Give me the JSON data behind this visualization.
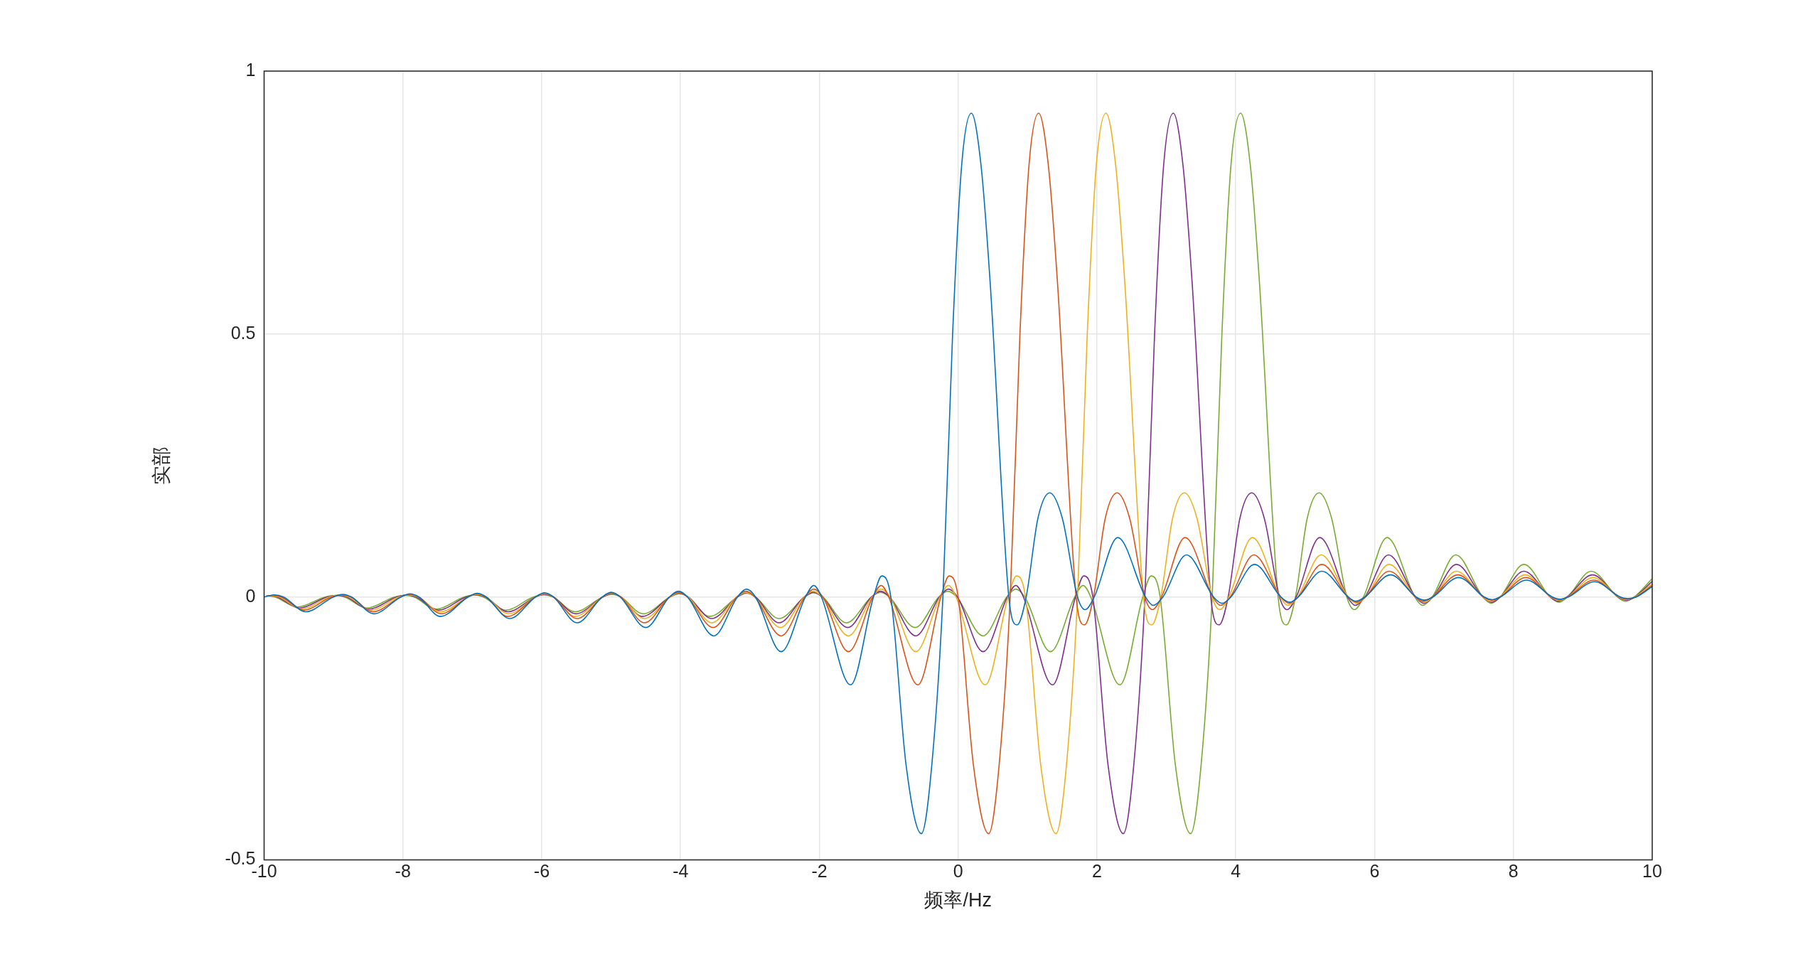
{
  "chart_data": {
    "type": "line",
    "xlabel": "频率/Hz",
    "ylabel": "实部",
    "xlim": [
      -10,
      10
    ],
    "xticks": [
      -10,
      -8,
      -6,
      -4,
      -2,
      0,
      2,
      4,
      6,
      8,
      10
    ],
    "ylim": [
      -0.5,
      1
    ],
    "yticks": [
      -0.5,
      0,
      0.5,
      1
    ],
    "grid": true,
    "legend": false,
    "series": [
      {
        "color": "#0072bd",
        "x": [
          -10.0,
          -9.85,
          -9.72,
          -9.4,
          -9.0,
          -8.87,
          -8.74,
          -8.42,
          -8.03,
          -7.9,
          -7.77,
          -7.46,
          -7.06,
          -6.93,
          -6.8,
          -6.46,
          -6.09,
          -5.96,
          -5.83,
          -5.49,
          -5.13,
          -5.0,
          -4.87,
          -4.5,
          -4.16,
          -4.03,
          -3.9,
          -3.52,
          -3.18,
          -3.05,
          -2.92,
          -2.55,
          -2.2,
          -2.08,
          -1.97,
          -1.55,
          -1.22,
          -1.1,
          -0.97,
          -0.75,
          -0.53,
          -0.38,
          -0.22,
          -0.08,
          0.05,
          0.19,
          0.33,
          0.46,
          0.73,
          0.85,
          0.98,
          1.15,
          1.32,
          1.5,
          1.72,
          1.83,
          1.96,
          2.3,
          2.7,
          2.81,
          2.95,
          3.29,
          3.68,
          3.8,
          3.93,
          4.27,
          4.65,
          4.78,
          4.9,
          5.24,
          5.62,
          5.73,
          5.86,
          6.23,
          6.6,
          6.72,
          6.84,
          7.21,
          7.58,
          7.69,
          7.81,
          8.19,
          8.56,
          8.67,
          8.79,
          9.17,
          9.54,
          9.65,
          9.77,
          10.0
        ],
        "values": [
          0,
          0.004,
          0,
          -0.028,
          0,
          0.005,
          0,
          -0.032,
          0,
          0.006,
          0,
          -0.037,
          0,
          0.007,
          0,
          -0.041,
          0,
          0.008,
          0,
          -0.049,
          0,
          0.009,
          0,
          -0.058,
          0,
          0.011,
          0,
          -0.074,
          0,
          0.015,
          0,
          -0.104,
          0,
          0.022,
          0,
          -0.167,
          0,
          0.04,
          0,
          -0.32,
          -0.45,
          -0.32,
          0,
          0.5,
          0.82,
          0.92,
          0.82,
          0.6,
          0,
          -0.053,
          0,
          0.15,
          0.198,
          0.15,
          0,
          -0.024,
          0,
          0.113,
          0,
          -0.016,
          0,
          0.08,
          0,
          -0.012,
          0,
          0.062,
          0,
          -0.01,
          0,
          0.049,
          0,
          -0.008,
          0,
          0.042,
          0,
          -0.006,
          0,
          0.037,
          0,
          -0.005,
          0,
          0.032,
          0,
          -0.004,
          0,
          0.029,
          0,
          -0.003,
          0,
          0.02
        ]
      },
      {
        "color": "#d95319",
        "x": [
          -9.88,
          -9.75,
          -9.43,
          -9.03,
          -8.88,
          -8.75,
          -8.43,
          -8.03,
          -7.9,
          -7.77,
          -7.45,
          -7.06,
          -6.93,
          -6.8,
          -6.49,
          -6.09,
          -5.96,
          -5.83,
          -5.49,
          -5.12,
          -4.99,
          -4.86,
          -4.52,
          -4.16,
          -4.03,
          -3.9,
          -3.53,
          -3.19,
          -3.06,
          -2.93,
          -2.55,
          -2.21,
          -2.08,
          -1.95,
          -1.58,
          -1.23,
          -1.11,
          -1.0,
          -0.58,
          -0.25,
          -0.13,
          0.0,
          0.22,
          0.44,
          0.59,
          0.75,
          0.89,
          1.02,
          1.16,
          1.3,
          1.43,
          1.7,
          1.82,
          1.95,
          2.12,
          2.29,
          2.47,
          2.69,
          2.8,
          2.93,
          3.27,
          3.67,
          3.78,
          3.92,
          4.26,
          4.65,
          4.77,
          4.9,
          5.24,
          5.62,
          5.75,
          5.87,
          6.21,
          6.59,
          6.7,
          6.83,
          7.2,
          7.57,
          7.69,
          7.81,
          8.18,
          8.55,
          8.66,
          8.78,
          9.16,
          9.53,
          9.64,
          9.76,
          10.0
        ],
        "values": [
          0.004,
          0,
          -0.025,
          0,
          0.004,
          0,
          -0.028,
          0,
          0.005,
          0,
          -0.032,
          0,
          0.006,
          0,
          -0.037,
          0,
          0.007,
          0,
          -0.041,
          0,
          0.008,
          0,
          -0.049,
          0,
          0.009,
          0,
          -0.058,
          0,
          0.011,
          0,
          -0.074,
          0,
          0.015,
          0,
          -0.104,
          0,
          0.022,
          0,
          -0.167,
          0,
          0.04,
          0,
          -0.32,
          -0.45,
          -0.32,
          0,
          0.5,
          0.82,
          0.92,
          0.82,
          0.6,
          0,
          -0.053,
          0,
          0.15,
          0.198,
          0.15,
          0,
          -0.024,
          0,
          0.113,
          0,
          -0.016,
          0,
          0.08,
          0,
          -0.012,
          0,
          0.062,
          0,
          -0.01,
          0,
          0.049,
          0,
          -0.008,
          0,
          0.042,
          0,
          -0.006,
          0,
          0.037,
          0,
          -0.005,
          0,
          0.032,
          0,
          -0.004,
          0,
          0.022
        ]
      },
      {
        "color": "#edb120",
        "x": [
          -9.91,
          -9.78,
          -9.46,
          -9.06,
          -8.91,
          -8.78,
          -8.46,
          -8.06,
          -7.91,
          -7.78,
          -7.46,
          -7.06,
          -6.93,
          -6.8,
          -6.48,
          -6.09,
          -5.96,
          -5.83,
          -5.52,
          -5.12,
          -4.99,
          -4.86,
          -4.52,
          -4.15,
          -4.02,
          -3.89,
          -3.55,
          -3.19,
          -3.06,
          -2.93,
          -2.56,
          -2.22,
          -2.09,
          -1.96,
          -1.58,
          -1.24,
          -1.11,
          -0.98,
          -0.61,
          -0.26,
          -0.14,
          -0.03,
          0.39,
          0.72,
          0.84,
          0.97,
          1.19,
          1.41,
          1.56,
          1.72,
          1.86,
          1.99,
          2.13,
          2.27,
          2.4,
          2.67,
          2.79,
          2.92,
          3.09,
          3.26,
          3.44,
          3.66,
          3.77,
          3.9,
          4.24,
          4.64,
          4.75,
          4.89,
          5.23,
          5.62,
          5.74,
          5.87,
          6.21,
          6.59,
          6.72,
          6.84,
          7.18,
          7.56,
          7.67,
          7.8,
          8.17,
          8.54,
          8.66,
          8.78,
          9.15,
          9.52,
          9.63,
          9.75,
          10.0
        ],
        "values": [
          0.003,
          0,
          -0.023,
          0,
          0.004,
          0,
          -0.025,
          0,
          0.004,
          0,
          -0.028,
          0,
          0.005,
          0,
          -0.032,
          0,
          0.006,
          0,
          -0.037,
          0,
          0.007,
          0,
          -0.041,
          0,
          0.008,
          0,
          -0.049,
          0,
          0.009,
          0,
          -0.058,
          0,
          0.011,
          0,
          -0.074,
          0,
          0.015,
          0,
          -0.104,
          0,
          0.022,
          0,
          -0.167,
          0,
          0.04,
          0,
          -0.32,
          -0.45,
          -0.32,
          0,
          0.5,
          0.82,
          0.92,
          0.82,
          0.6,
          0,
          -0.053,
          0,
          0.15,
          0.198,
          0.15,
          0,
          -0.024,
          0,
          0.113,
          0,
          -0.016,
          0,
          0.08,
          0,
          -0.012,
          0,
          0.062,
          0,
          -0.01,
          0,
          0.049,
          0,
          -0.008,
          0,
          0.042,
          0,
          -0.006,
          0,
          0.037,
          0,
          -0.005,
          0,
          0.025
        ]
      },
      {
        "color": "#7e2f8e",
        "x": [
          -9.94,
          -9.81,
          -9.49,
          -9.09,
          -8.94,
          -8.81,
          -8.49,
          -8.09,
          -7.94,
          -7.81,
          -7.49,
          -7.09,
          -6.94,
          -6.81,
          -6.49,
          -6.09,
          -5.96,
          -5.83,
          -5.51,
          -5.12,
          -4.99,
          -4.86,
          -4.55,
          -4.15,
          -4.02,
          -3.89,
          -3.55,
          -3.18,
          -3.05,
          -2.92,
          -2.58,
          -2.22,
          -2.09,
          -1.96,
          -1.59,
          -1.25,
          -1.12,
          -0.99,
          -0.61,
          -0.27,
          -0.14,
          -0.01,
          0.36,
          0.71,
          0.83,
          0.94,
          1.36,
          1.69,
          1.81,
          1.94,
          2.16,
          2.38,
          2.53,
          2.69,
          2.83,
          2.96,
          3.1,
          3.24,
          3.37,
          3.64,
          3.76,
          3.89,
          4.06,
          4.23,
          4.41,
          4.63,
          4.74,
          4.87,
          5.21,
          5.61,
          5.72,
          5.86,
          6.2,
          6.59,
          6.71,
          6.84,
          7.18,
          7.56,
          7.69,
          7.81,
          8.15,
          8.53,
          8.64,
          8.77,
          9.14,
          9.51,
          9.63,
          9.75,
          10.0
        ],
        "values": [
          0.003,
          0,
          -0.021,
          0,
          0.003,
          0,
          -0.023,
          0,
          0.004,
          0,
          -0.025,
          0,
          0.004,
          0,
          -0.028,
          0,
          0.005,
          0,
          -0.032,
          0,
          0.006,
          0,
          -0.037,
          0,
          0.007,
          0,
          -0.041,
          0,
          0.008,
          0,
          -0.049,
          0,
          0.009,
          0,
          -0.058,
          0,
          0.011,
          0,
          -0.074,
          0,
          0.015,
          0,
          -0.104,
          0,
          0.022,
          0,
          -0.167,
          0,
          0.04,
          0,
          -0.32,
          -0.45,
          -0.32,
          0,
          0.5,
          0.82,
          0.92,
          0.82,
          0.6,
          0,
          -0.053,
          0,
          0.15,
          0.198,
          0.15,
          0,
          -0.024,
          0,
          0.113,
          0,
          -0.016,
          0,
          0.08,
          0,
          -0.012,
          0,
          0.062,
          0,
          -0.01,
          0,
          0.049,
          0,
          -0.008,
          0,
          0.042,
          0,
          -0.006,
          0,
          0.03
        ]
      },
      {
        "color": "#77ac30",
        "x": [
          -9.97,
          -9.84,
          -9.52,
          -9.12,
          -8.97,
          -8.84,
          -8.52,
          -8.12,
          -7.97,
          -7.84,
          -7.52,
          -7.12,
          -6.97,
          -6.84,
          -6.52,
          -6.12,
          -5.97,
          -5.84,
          -5.52,
          -5.12,
          -4.99,
          -4.86,
          -4.54,
          -4.15,
          -4.02,
          -3.89,
          -3.58,
          -3.18,
          -3.05,
          -2.92,
          -2.58,
          -2.21,
          -2.08,
          -1.95,
          -1.61,
          -1.25,
          -1.12,
          -0.99,
          -0.62,
          -0.28,
          -0.15,
          -0.02,
          0.36,
          0.7,
          0.83,
          0.96,
          1.33,
          1.68,
          1.8,
          1.91,
          2.33,
          2.66,
          2.78,
          2.91,
          3.13,
          3.35,
          3.5,
          3.66,
          3.8,
          3.93,
          4.07,
          4.21,
          4.34,
          4.61,
          4.73,
          4.86,
          5.03,
          5.2,
          5.38,
          5.6,
          5.71,
          5.84,
          6.18,
          6.58,
          6.69,
          6.83,
          7.17,
          7.56,
          7.68,
          7.81,
          8.15,
          8.53,
          8.66,
          8.78,
          9.12,
          9.5,
          9.61,
          9.74,
          10.0
        ],
        "values": [
          0.003,
          0,
          -0.019,
          0,
          0.003,
          0,
          -0.021,
          0,
          0.003,
          0,
          -0.023,
          0,
          0.004,
          0,
          -0.025,
          0,
          0.004,
          0,
          -0.028,
          0,
          0.005,
          0,
          -0.032,
          0,
          0.006,
          0,
          -0.037,
          0,
          0.007,
          0,
          -0.041,
          0,
          0.008,
          0,
          -0.049,
          0,
          0.009,
          0,
          -0.058,
          0,
          0.011,
          0,
          -0.074,
          0,
          0.015,
          0,
          -0.104,
          0,
          0.022,
          0,
          -0.167,
          0,
          0.04,
          0,
          -0.32,
          -0.45,
          -0.32,
          0,
          0.5,
          0.82,
          0.92,
          0.82,
          0.6,
          0,
          -0.053,
          0,
          0.15,
          0.198,
          0.15,
          0,
          -0.024,
          0,
          0.113,
          0,
          -0.016,
          0,
          0.08,
          0,
          -0.012,
          0,
          0.062,
          0,
          -0.01,
          0,
          0.049,
          0,
          -0.008,
          0,
          0.035
        ]
      }
    ]
  }
}
